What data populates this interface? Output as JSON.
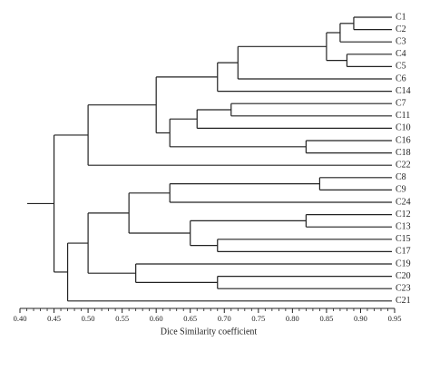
{
  "chart_data": {
    "type": "dendrogram",
    "xlabel": "Dice Similarity coefficient",
    "xlim": [
      0.4,
      0.95
    ],
    "xticks": [
      {
        "value": 0.4,
        "label": "0.40"
      },
      {
        "value": 0.45,
        "label": "0.45"
      },
      {
        "value": 0.5,
        "label": "0.50"
      },
      {
        "value": 0.55,
        "label": "0.55"
      },
      {
        "value": 0.6,
        "label": "0.60"
      },
      {
        "value": 0.65,
        "label": "0.65"
      },
      {
        "value": 0.7,
        "label": "0.70"
      },
      {
        "value": 0.75,
        "label": "0.75"
      },
      {
        "value": 0.8,
        "label": "0.80"
      },
      {
        "value": 0.85,
        "label": "0.85"
      },
      {
        "value": 0.9,
        "label": "0.90"
      },
      {
        "value": 0.95,
        "label": "0.95"
      }
    ],
    "color": "#222222",
    "tree": {
      "height": 0.45,
      "children": [
        {
          "height": 0.5,
          "children": [
            {
              "height": 0.6,
              "children": [
                {
                  "height": 0.69,
                  "children": [
                    {
                      "height": 0.72,
                      "children": [
                        {
                          "height": 0.85,
                          "children": [
                            {
                              "height": 0.87,
                              "children": [
                                {
                                  "height": 0.89,
                                  "children": [
                                    {
                                      "label": "C1"
                                    },
                                    {
                                      "label": "C2"
                                    }
                                  ]
                                },
                                {
                                  "label": "C3"
                                }
                              ]
                            },
                            {
                              "height": 0.88,
                              "children": [
                                {
                                  "label": "C4"
                                },
                                {
                                  "label": "C5"
                                }
                              ]
                            }
                          ]
                        },
                        {
                          "label": "C6"
                        }
                      ]
                    },
                    {
                      "label": "C14"
                    }
                  ]
                },
                {
                  "height": 0.62,
                  "children": [
                    {
                      "height": 0.66,
                      "children": [
                        {
                          "height": 0.71,
                          "children": [
                            {
                              "label": "C7"
                            },
                            {
                              "label": "C11"
                            }
                          ]
                        },
                        {
                          "label": "C10"
                        }
                      ]
                    },
                    {
                      "height": 0.82,
                      "children": [
                        {
                          "label": "C16"
                        },
                        {
                          "label": "C18"
                        }
                      ]
                    }
                  ]
                }
              ]
            },
            {
              "label": "C22"
            }
          ]
        },
        {
          "height": 0.47,
          "children": [
            {
              "height": 0.5,
              "children": [
                {
                  "height": 0.56,
                  "children": [
                    {
                      "height": 0.62,
                      "children": [
                        {
                          "height": 0.84,
                          "children": [
                            {
                              "label": "C8"
                            },
                            {
                              "label": "C9"
                            }
                          ]
                        },
                        {
                          "label": "C24"
                        }
                      ]
                    },
                    {
                      "height": 0.65,
                      "children": [
                        {
                          "height": 0.82,
                          "children": [
                            {
                              "label": "C12"
                            },
                            {
                              "label": "C13"
                            }
                          ]
                        },
                        {
                          "height": 0.69,
                          "children": [
                            {
                              "label": "C15"
                            },
                            {
                              "label": "C17"
                            }
                          ]
                        }
                      ]
                    }
                  ]
                },
                {
                  "height": 0.57,
                  "children": [
                    {
                      "label": "C19"
                    },
                    {
                      "height": 0.69,
                      "children": [
                        {
                          "label": "C20"
                        },
                        {
                          "label": "C23"
                        }
                      ]
                    }
                  ]
                }
              ]
            },
            {
              "label": "C21"
            }
          ]
        }
      ]
    }
  }
}
